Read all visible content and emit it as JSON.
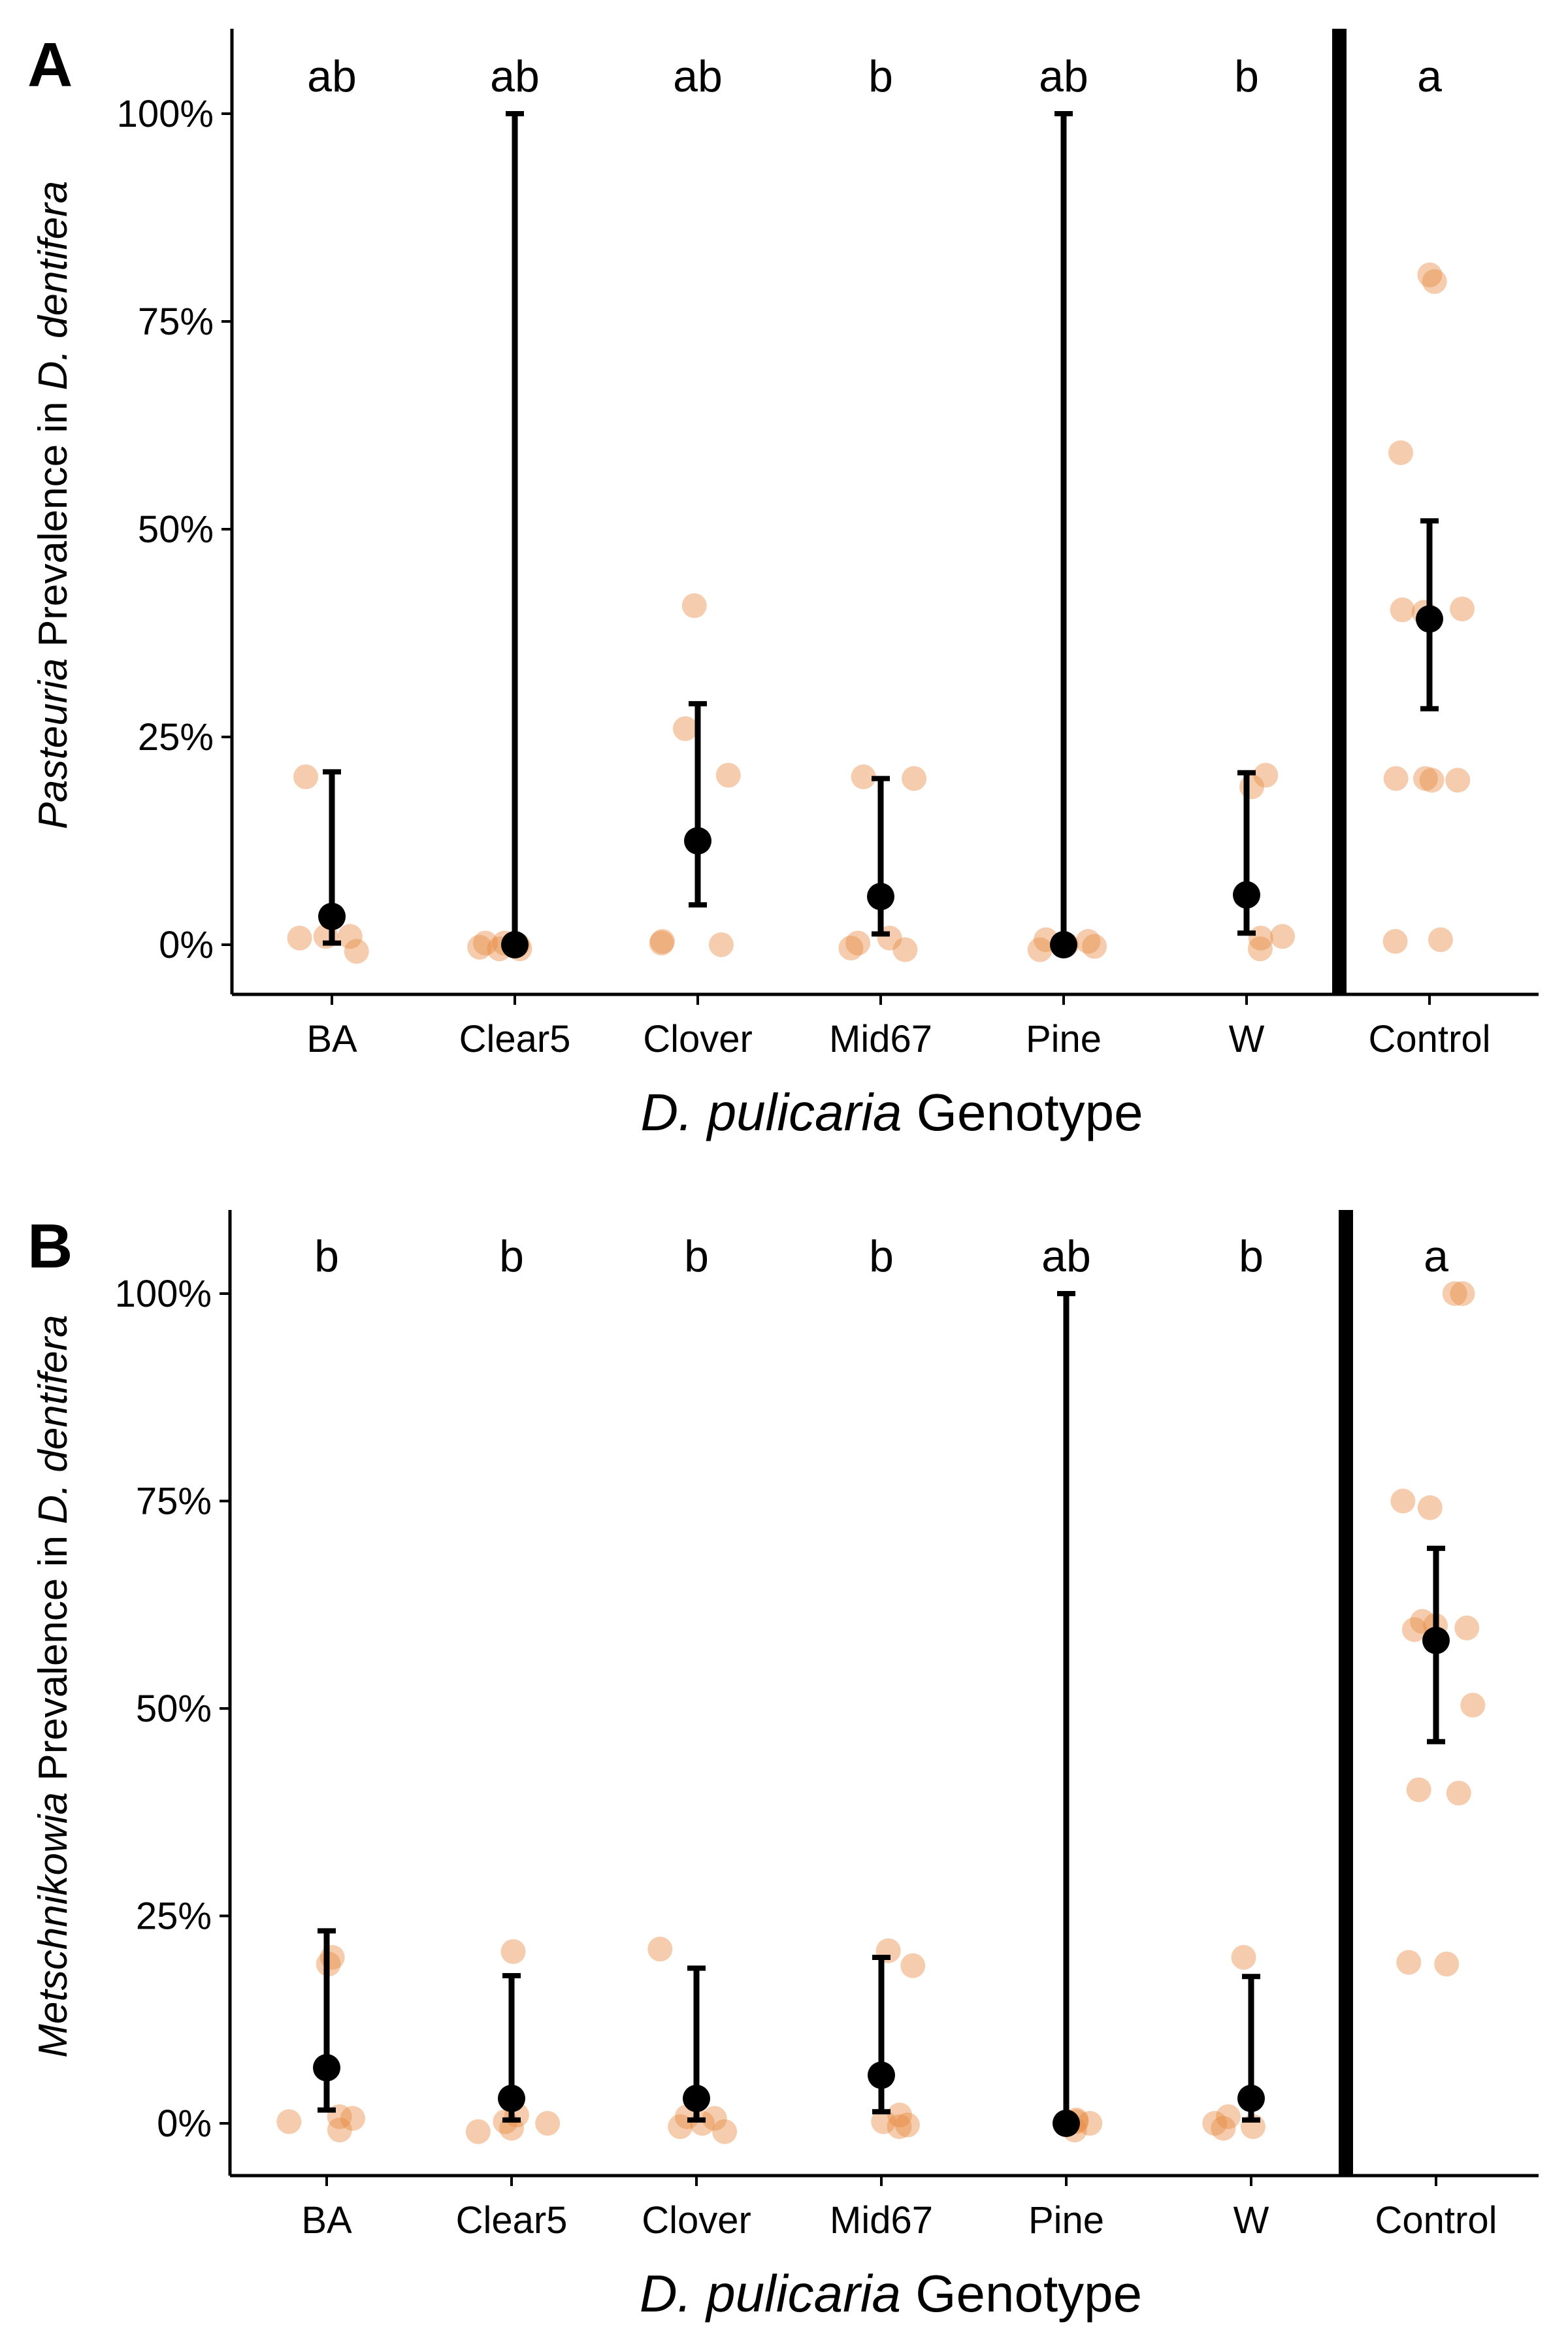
{
  "colors": {
    "point": "#e8873f",
    "mean": "#000000",
    "axis": "#000000"
  },
  "chart_data": [
    {
      "type": "scatter",
      "panel": "A",
      "ylabel_italic": "Pasteuria",
      "ylabel_pre": "Prevalence in",
      "ylabel_species": "D. dentifera",
      "xlabel_italic": "D. pulicaria",
      "xlabel_rest": "Genotype",
      "ylim": [
        -0.06,
        1.1
      ],
      "yticks": [
        0,
        0.25,
        0.5,
        0.75,
        1.0
      ],
      "ytick_labels": [
        "0%",
        "25%",
        "50%",
        "75%",
        "100%"
      ],
      "grid": false,
      "legend": "none",
      "separator_after": "W",
      "categories": [
        "BA",
        "Clear5",
        "Clover",
        "Mid67",
        "Pine",
        "W",
        "Control"
      ],
      "groups": [
        {
          "category": "BA",
          "letter": "ab",
          "mean": 0.034,
          "ci": [
            0.002,
            0.208
          ],
          "points": [
            0.01,
            0.008,
            0.01,
            -0.008,
            0.202
          ]
        },
        {
          "category": "Clear5",
          "letter": "ab",
          "mean": 0.0,
          "ci": [
            0.0,
            1.0
          ],
          "points": [
            -0.005,
            0.002,
            -0.005,
            0.0,
            0.002,
            -0.003
          ]
        },
        {
          "category": "Clover",
          "letter": "ab",
          "mean": 0.125,
          "ci": [
            0.048,
            0.29
          ],
          "points": [
            0.408,
            0.26,
            0.204,
            0.004,
            0.0,
            0.002
          ]
        },
        {
          "category": "Mid67",
          "letter": "b",
          "mean": 0.058,
          "ci": [
            0.013,
            0.2
          ],
          "points": [
            0.202,
            0.2,
            0.008,
            -0.004,
            0.002,
            -0.006
          ]
        },
        {
          "category": "Pine",
          "letter": "ab",
          "mean": 0.0,
          "ci": [
            0.0,
            1.0
          ],
          "points": [
            0.004,
            0.0,
            -0.002,
            0.006,
            -0.006
          ]
        },
        {
          "category": "W",
          "letter": "b",
          "mean": 0.06,
          "ci": [
            0.014,
            0.207
          ],
          "points": [
            0.204,
            0.19,
            0.008,
            0.01,
            -0.005
          ]
        },
        {
          "category": "Control",
          "letter": "a",
          "mean": 0.392,
          "ci": [
            0.284,
            0.51
          ],
          "points": [
            0.806,
            0.798,
            0.592,
            0.4,
            0.404,
            0.403,
            0.2,
            0.198,
            0.198,
            0.2,
            0.006,
            0.004
          ]
        }
      ]
    },
    {
      "type": "scatter",
      "panel": "B",
      "ylabel_italic": "Metschnikowia",
      "ylabel_pre": "Prevalence in",
      "ylabel_species": "D. dentifera",
      "xlabel_italic": "D. pulicaria",
      "xlabel_rest": "Genotype",
      "ylim": [
        -0.06,
        1.1
      ],
      "yticks": [
        0,
        0.25,
        0.5,
        0.75,
        1.0
      ],
      "ytick_labels": [
        "0%",
        "25%",
        "50%",
        "75%",
        "100%"
      ],
      "grid": false,
      "legend": "none",
      "separator_after": "W",
      "categories": [
        "BA",
        "Clear5",
        "Clover",
        "Mid67",
        "Pine",
        "W",
        "Control"
      ],
      "groups": [
        {
          "category": "BA",
          "letter": "b",
          "mean": 0.067,
          "ci": [
            0.016,
            0.232
          ],
          "points": [
            0.192,
            0.2,
            0.006,
            0.002,
            -0.008,
            0.008
          ]
        },
        {
          "category": "Clear5",
          "letter": "b",
          "mean": 0.03,
          "ci": [
            0.004,
            0.178
          ],
          "points": [
            0.207,
            0.01,
            -0.01,
            -0.006,
            0.0,
            0.002
          ]
        },
        {
          "category": "Clover",
          "letter": "b",
          "mean": 0.03,
          "ci": [
            0.004,
            0.187
          ],
          "points": [
            0.21,
            0.008,
            -0.004,
            0.0,
            -0.01,
            0.006
          ]
        },
        {
          "category": "Mid67",
          "letter": "b",
          "mean": 0.058,
          "ci": [
            0.014,
            0.2
          ],
          "points": [
            0.208,
            0.19,
            0.01,
            -0.004,
            0.002,
            -0.002
          ]
        },
        {
          "category": "Pine",
          "letter": "ab",
          "mean": 0.0,
          "ci": [
            0.0,
            1.0
          ],
          "points": [
            -0.008,
            0.0,
            0.004,
            0.002
          ]
        },
        {
          "category": "W",
          "letter": "b",
          "mean": 0.03,
          "ci": [
            0.004,
            0.177
          ],
          "points": [
            0.2,
            0.008,
            -0.006,
            0.0,
            -0.004
          ]
        },
        {
          "category": "Control",
          "letter": "a",
          "mean": 0.582,
          "ci": [
            0.46,
            0.693
          ],
          "points": [
            1.0,
            1.0,
            0.75,
            0.742,
            0.605,
            0.6,
            0.597,
            0.595,
            0.504,
            0.402,
            0.398,
            0.194,
            0.192
          ]
        }
      ]
    }
  ]
}
